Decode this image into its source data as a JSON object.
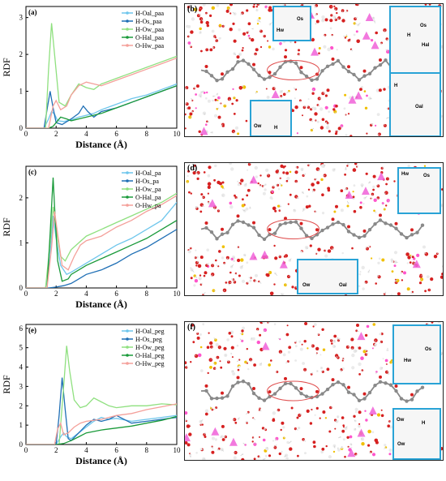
{
  "panels": {
    "a": {
      "letter": "(a)"
    },
    "b": {
      "letter": "(b)"
    },
    "c": {
      "letter": "(c)"
    },
    "d": {
      "letter": "(d)"
    },
    "e": {
      "letter": "(e)"
    },
    "f": {
      "letter": "(f)"
    }
  },
  "colors": {
    "H-Oal": "#6ec6ec",
    "H-Os": "#1f6fb5",
    "H-Ow": "#8fe07f",
    "O-Hal": "#1a9a3a",
    "O-Hw": "#f4a09a",
    "ellipse": "#e05050",
    "inset_border": "#29a3d6"
  },
  "chart_data": [
    {
      "type": "line",
      "panel": "(a)",
      "xlabel": "Distance (Å)",
      "ylabel": "RDF",
      "xlim": [
        0,
        10
      ],
      "ylim": [
        0,
        3.3
      ],
      "xticks": [
        "0",
        "2",
        "4",
        "6",
        "8",
        "10"
      ],
      "yticks": [
        "0",
        "1",
        "2",
        "3"
      ],
      "legend_position": "top-right",
      "series": [
        {
          "name": "H-Oal_paa",
          "x": [
            0,
            1.2,
            1.5,
            1.7,
            1.9,
            2.1,
            2.5,
            3,
            3.5,
            4,
            4.5,
            5,
            6,
            7,
            8,
            9,
            10
          ],
          "y": [
            0,
            0,
            0.25,
            0.45,
            0.38,
            0.2,
            0.18,
            0.22,
            0.3,
            0.35,
            0.4,
            0.5,
            0.65,
            0.8,
            0.9,
            1.05,
            1.2
          ]
        },
        {
          "name": "H-Os_paa",
          "x": [
            0,
            1.2,
            1.4,
            1.6,
            1.8,
            2.0,
            2.4,
            3,
            3.5,
            3.8,
            4.1,
            4.5,
            5,
            6,
            7,
            8,
            9,
            10
          ],
          "y": [
            0,
            0,
            0.5,
            1.0,
            0.55,
            0.15,
            0.1,
            0.25,
            0.4,
            0.6,
            0.45,
            0.3,
            0.45,
            0.55,
            0.7,
            0.85,
            1.0,
            1.15
          ]
        },
        {
          "name": "H-Ow_paa",
          "x": [
            0,
            1.3,
            1.5,
            1.7,
            1.9,
            2.2,
            2.6,
            3,
            3.5,
            4,
            4.5,
            5,
            6,
            7,
            8,
            9,
            10
          ],
          "y": [
            0,
            0,
            1.6,
            2.85,
            2.0,
            0.7,
            0.6,
            0.9,
            1.2,
            1.1,
            1.05,
            1.2,
            1.35,
            1.5,
            1.65,
            1.8,
            1.95
          ]
        },
        {
          "name": "O-Hal_paa",
          "x": [
            0,
            1.5,
            1.8,
            2.0,
            2.3,
            2.7,
            3,
            3.5,
            4,
            5,
            6,
            7,
            8,
            9,
            10
          ],
          "y": [
            0,
            0,
            0.05,
            0.15,
            0.3,
            0.25,
            0.2,
            0.25,
            0.3,
            0.4,
            0.55,
            0.7,
            0.85,
            1.0,
            1.15
          ]
        },
        {
          "name": "O-Hw_paa",
          "x": [
            0,
            1.5,
            1.8,
            2.0,
            2.3,
            2.7,
            3,
            3.5,
            4,
            5,
            6,
            7,
            8,
            9,
            10
          ],
          "y": [
            0,
            0,
            0.6,
            0.75,
            0.5,
            0.6,
            0.9,
            1.15,
            1.25,
            1.15,
            1.3,
            1.45,
            1.6,
            1.75,
            1.9
          ]
        }
      ]
    },
    {
      "type": "line",
      "panel": "(c)",
      "xlabel": "Distance (Å)",
      "ylabel": "RDF",
      "xlim": [
        0,
        10
      ],
      "ylim": [
        0,
        2.7
      ],
      "xticks": [
        "0",
        "2",
        "4",
        "6",
        "8",
        "10"
      ],
      "yticks": [
        "0",
        "1",
        "2"
      ],
      "legend_position": "top-right",
      "series": [
        {
          "name": "H-Oal_pa",
          "x": [
            0,
            1.3,
            1.6,
            1.8,
            2.0,
            2.3,
            2.7,
            3,
            3.5,
            4,
            5,
            6,
            7,
            8,
            9,
            10
          ],
          "y": [
            0,
            0,
            0.7,
            1.6,
            1.1,
            0.5,
            0.3,
            0.35,
            0.45,
            0.55,
            0.75,
            0.95,
            1.1,
            1.3,
            1.5,
            1.9
          ]
        },
        {
          "name": "H-Os_pa",
          "x": [
            0,
            1.5,
            2.0,
            2.5,
            3,
            3.5,
            4,
            5,
            6,
            7,
            8,
            9,
            10
          ],
          "y": [
            0,
            0,
            0.02,
            0.05,
            0.1,
            0.2,
            0.3,
            0.4,
            0.55,
            0.75,
            0.9,
            1.1,
            1.3
          ]
        },
        {
          "name": "H-Ow_pa",
          "x": [
            0,
            1.3,
            1.6,
            1.8,
            2.0,
            2.3,
            2.6,
            3,
            3.5,
            4,
            5,
            6,
            7,
            8,
            9,
            10
          ],
          "y": [
            0,
            0,
            1.0,
            1.8,
            1.3,
            0.7,
            0.6,
            0.85,
            1.0,
            1.15,
            1.3,
            1.45,
            1.6,
            1.75,
            1.9,
            2.1
          ]
        },
        {
          "name": "O-Hal_pa",
          "x": [
            0,
            1.4,
            1.6,
            1.8,
            1.9,
            2.1,
            2.4,
            2.8,
            3,
            3.5,
            4,
            5,
            6,
            7,
            8,
            9,
            10
          ],
          "y": [
            0,
            0,
            1.2,
            2.45,
            1.8,
            0.6,
            0.15,
            0.2,
            0.3,
            0.4,
            0.5,
            0.65,
            0.8,
            0.95,
            1.1,
            1.3,
            1.5
          ]
        },
        {
          "name": "O-Hw_pa",
          "x": [
            0,
            1.4,
            1.7,
            1.9,
            2.1,
            2.4,
            2.8,
            3.2,
            3.6,
            4,
            5,
            6,
            7,
            8,
            9,
            10
          ],
          "y": [
            0,
            0,
            0.9,
            1.7,
            1.2,
            0.5,
            0.4,
            0.7,
            0.95,
            1.05,
            1.15,
            1.35,
            1.5,
            1.7,
            1.85,
            2.05
          ]
        }
      ]
    },
    {
      "type": "line",
      "panel": "(e)",
      "xlabel": "Distance (Å)",
      "ylabel": "RDF",
      "xlim": [
        0,
        10
      ],
      "ylim": [
        0,
        6.2
      ],
      "xticks": [
        "0",
        "2",
        "4",
        "6",
        "8",
        "10"
      ],
      "yticks": [
        "0",
        "1",
        "2",
        "3",
        "4",
        "5",
        "6"
      ],
      "legend_position": "top-right",
      "series": [
        {
          "name": "H-Oal_peg",
          "x": [
            0,
            2.0,
            2.3,
            2.5,
            2.7,
            3,
            3.5,
            4,
            4.5,
            5,
            5.5,
            6,
            7,
            8,
            9,
            10
          ],
          "y": [
            0,
            0,
            0.4,
            0.6,
            0.4,
            0.3,
            0.6,
            0.9,
            1.2,
            1.4,
            1.3,
            1.35,
            1.2,
            1.3,
            1.4,
            1.5
          ]
        },
        {
          "name": "H-Os_peg",
          "x": [
            0,
            2.0,
            2.2,
            2.4,
            2.6,
            2.8,
            3,
            3.5,
            4,
            4.5,
            5,
            5.5,
            6,
            7,
            8,
            9,
            10
          ],
          "y": [
            0,
            0,
            1.5,
            3.45,
            1.8,
            0.3,
            0.2,
            0.6,
            1.0,
            1.3,
            1.2,
            1.3,
            1.5,
            1.1,
            1.2,
            1.3,
            1.4
          ]
        },
        {
          "name": "H-Ow_peg",
          "x": [
            0,
            2.2,
            2.5,
            2.7,
            2.9,
            3.2,
            3.6,
            4,
            4.5,
            5,
            5.5,
            6,
            7,
            8,
            9,
            10
          ],
          "y": [
            0,
            0,
            3.0,
            5.1,
            3.8,
            2.3,
            1.9,
            2.0,
            2.4,
            2.2,
            2.0,
            1.9,
            2.0,
            2.0,
            2.1,
            2.05
          ]
        },
        {
          "name": "O-Hal_peg",
          "x": [
            0,
            2.0,
            2.5,
            3,
            3.5,
            4,
            5,
            6,
            7,
            8,
            9,
            10
          ],
          "y": [
            0,
            0,
            0.05,
            0.2,
            0.4,
            0.6,
            0.75,
            0.85,
            0.95,
            1.1,
            1.25,
            1.45
          ]
        },
        {
          "name": "O-Hw_peg",
          "x": [
            0,
            1.9,
            2.1,
            2.3,
            2.5,
            2.8,
            3.2,
            3.6,
            4,
            5,
            6,
            7,
            8,
            9,
            10
          ],
          "y": [
            0,
            0,
            0.8,
            1.1,
            0.5,
            0.6,
            0.9,
            1.1,
            1.2,
            1.3,
            1.5,
            1.6,
            1.8,
            1.95,
            2.1
          ]
        }
      ]
    }
  ],
  "snapshots": {
    "b": {
      "inset_labels": [
        [
          "Hw",
          "Os"
        ],
        [
          "Os",
          "H",
          "Hal"
        ],
        [
          "Ow",
          "H"
        ],
        [
          "H",
          "Oal"
        ]
      ]
    },
    "d": {
      "inset_labels": [
        [
          "Hw",
          "Os"
        ],
        [
          "Ow",
          "Oal"
        ]
      ]
    },
    "f": {
      "inset_labels": [
        [
          "Os",
          "Hw"
        ],
        [
          "Ow",
          "H",
          "Ow"
        ]
      ]
    }
  }
}
